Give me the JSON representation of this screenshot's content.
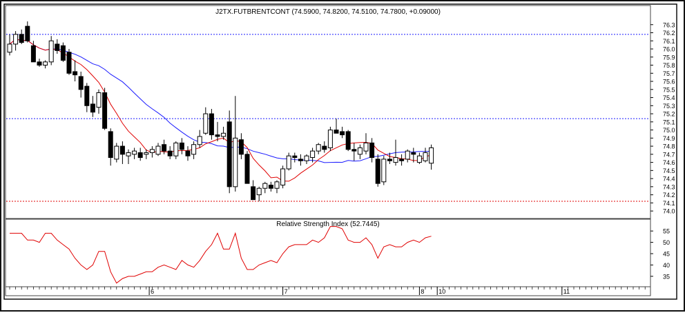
{
  "price_panel": {
    "title": "J2TX.FUTBRENTCONT (74.5900, 74.8200, 74.5100, 74.7800, +0.09000)",
    "y_ticks": [
      "76.3",
      "76.2",
      "76.1",
      "76.0",
      "75.9",
      "75.8",
      "75.7",
      "75.6",
      "75.5",
      "75.4",
      "75.3",
      "75.2",
      "75.1",
      "75.0",
      "74.9",
      "74.8",
      "74.7",
      "74.6",
      "74.5",
      "74.4",
      "74.3",
      "74.2",
      "74.1",
      "74.0"
    ]
  },
  "rsi_panel": {
    "title": "Relative Strength Index (52.7445)",
    "y_ticks": [
      "55",
      "50",
      "45",
      "40",
      "35"
    ]
  },
  "x_axis": {
    "labels": [
      {
        "text": "6",
        "bar": 23.5
      },
      {
        "text": "7",
        "bar": 46
      },
      {
        "text": "8",
        "bar": 69
      },
      {
        "text": "10",
        "bar": 72
      },
      {
        "text": "11",
        "bar": 93
      }
    ]
  },
  "colors": {
    "ma_fast": "#e00000",
    "ma_slow": "#1a1aff",
    "rsi": "#e00000",
    "level_blue": "#1a1aff",
    "level_red": "#e00000",
    "candle_up": "#ffffff",
    "candle_down": "#000000"
  },
  "chart_data": [
    {
      "type": "candlestick",
      "title": "J2TX.FUTBRENTCONT (74.5900, 74.8200, 74.5100, 74.7800, +0.09000)",
      "ylim": [
        73.95,
        76.4
      ],
      "horizontal_levels": [
        {
          "value": 76.18,
          "color": "blue",
          "style": "dashed"
        },
        {
          "value": 75.14,
          "color": "blue",
          "style": "dashed"
        },
        {
          "value": 74.12,
          "color": "red",
          "style": "dashed"
        }
      ],
      "ohlc": [
        [
          75.96,
          76.18,
          75.92,
          76.06
        ],
        [
          76.06,
          76.22,
          75.98,
          76.18
        ],
        [
          76.18,
          76.24,
          76.06,
          76.08
        ],
        [
          76.28,
          76.34,
          76.08,
          76.1
        ],
        [
          76.04,
          76.1,
          75.84,
          75.84
        ],
        [
          75.84,
          75.88,
          75.78,
          75.8
        ],
        [
          75.8,
          75.86,
          75.76,
          75.84
        ],
        [
          75.84,
          76.16,
          75.8,
          76.1
        ],
        [
          76.06,
          76.12,
          75.94,
          75.98
        ],
        [
          76.04,
          76.08,
          75.84,
          75.86
        ],
        [
          75.96,
          76.0,
          75.68,
          75.7
        ],
        [
          75.72,
          75.86,
          75.6,
          75.68
        ],
        [
          75.66,
          75.72,
          75.4,
          75.5
        ],
        [
          75.54,
          75.58,
          75.22,
          75.3
        ],
        [
          75.32,
          75.42,
          75.16,
          75.22
        ],
        [
          75.28,
          75.5,
          75.2,
          75.46
        ],
        [
          75.46,
          75.52,
          75.0,
          75.02
        ],
        [
          74.98,
          75.02,
          74.56,
          74.66
        ],
        [
          74.64,
          74.84,
          74.6,
          74.8
        ],
        [
          74.8,
          74.86,
          74.58,
          74.7
        ],
        [
          74.68,
          74.76,
          74.58,
          74.72
        ],
        [
          74.7,
          74.78,
          74.64,
          74.74
        ],
        [
          74.72,
          74.78,
          74.62,
          74.66
        ],
        [
          74.7,
          74.76,
          74.64,
          74.72
        ],
        [
          74.72,
          74.8,
          74.66,
          74.76
        ],
        [
          74.7,
          74.84,
          74.68,
          74.8
        ],
        [
          74.82,
          74.88,
          74.7,
          74.74
        ],
        [
          74.74,
          74.8,
          74.64,
          74.68
        ],
        [
          74.68,
          74.86,
          74.64,
          74.84
        ],
        [
          74.84,
          74.9,
          74.7,
          74.76
        ],
        [
          74.74,
          74.8,
          74.62,
          74.68
        ],
        [
          74.7,
          74.86,
          74.64,
          74.82
        ],
        [
          74.82,
          75.0,
          74.78,
          74.92
        ],
        [
          74.96,
          75.28,
          74.94,
          75.2
        ],
        [
          75.2,
          75.26,
          74.88,
          74.94
        ],
        [
          74.94,
          75.1,
          74.86,
          74.92
        ],
        [
          74.92,
          75.04,
          74.88,
          74.96
        ],
        [
          75.1,
          75.24,
          74.22,
          74.3
        ],
        [
          74.3,
          75.42,
          74.24,
          74.9
        ],
        [
          74.88,
          74.96,
          74.64,
          74.7
        ],
        [
          74.7,
          74.74,
          74.34,
          74.34
        ],
        [
          74.3,
          74.38,
          74.14,
          74.14
        ],
        [
          74.2,
          74.3,
          74.12,
          74.28
        ],
        [
          74.28,
          74.36,
          74.22,
          74.34
        ],
        [
          74.32,
          74.36,
          74.24,
          74.28
        ],
        [
          74.28,
          74.38,
          74.22,
          74.36
        ],
        [
          74.32,
          74.56,
          74.28,
          74.52
        ],
        [
          74.52,
          74.72,
          74.5,
          74.68
        ],
        [
          74.68,
          74.72,
          74.6,
          74.66
        ],
        [
          74.64,
          74.7,
          74.56,
          74.62
        ],
        [
          74.62,
          74.7,
          74.58,
          74.68
        ],
        [
          74.66,
          74.78,
          74.6,
          74.74
        ],
        [
          74.74,
          74.84,
          74.7,
          74.82
        ],
        [
          74.8,
          74.86,
          74.72,
          74.76
        ],
        [
          74.78,
          75.04,
          74.74,
          75.0
        ],
        [
          75.0,
          75.14,
          74.96,
          74.96
        ],
        [
          74.98,
          75.04,
          74.9,
          74.94
        ],
        [
          74.98,
          75.0,
          74.74,
          74.76
        ],
        [
          74.76,
          74.84,
          74.62,
          74.74
        ],
        [
          74.7,
          74.82,
          74.64,
          74.78
        ],
        [
          74.74,
          74.96,
          74.7,
          74.84
        ],
        [
          74.84,
          74.9,
          74.6,
          74.66
        ],
        [
          74.64,
          74.7,
          74.3,
          74.34
        ],
        [
          74.36,
          74.68,
          74.32,
          74.64
        ],
        [
          74.64,
          74.72,
          74.58,
          74.62
        ],
        [
          74.6,
          74.88,
          74.56,
          74.66
        ],
        [
          74.64,
          74.7,
          74.56,
          74.62
        ],
        [
          74.64,
          74.76,
          74.6,
          74.74
        ],
        [
          74.72,
          74.78,
          74.6,
          74.7
        ],
        [
          74.6,
          74.72,
          74.58,
          74.68
        ],
        [
          74.62,
          74.78,
          74.6,
          74.72
        ],
        [
          74.59,
          74.82,
          74.51,
          74.78
        ]
      ]
    },
    {
      "type": "line",
      "title": "Relative Strength Index (52.7445)",
      "ylim": [
        31,
        59
      ],
      "values": [
        54,
        54,
        54,
        51,
        51,
        50,
        54,
        54,
        51,
        49,
        47,
        43,
        40,
        38,
        40,
        46,
        46,
        37,
        32,
        34,
        35,
        35,
        36,
        37,
        37,
        39,
        40,
        39,
        38,
        42,
        40,
        39,
        42,
        46,
        49,
        54,
        47,
        47,
        54,
        43,
        38,
        38,
        40,
        41,
        42,
        41,
        45,
        48,
        49,
        49,
        49,
        51,
        50,
        52,
        57,
        57,
        56,
        51,
        50,
        50,
        52,
        49,
        43,
        48,
        49,
        48,
        48,
        50,
        51,
        50,
        52,
        52.7
      ]
    }
  ]
}
